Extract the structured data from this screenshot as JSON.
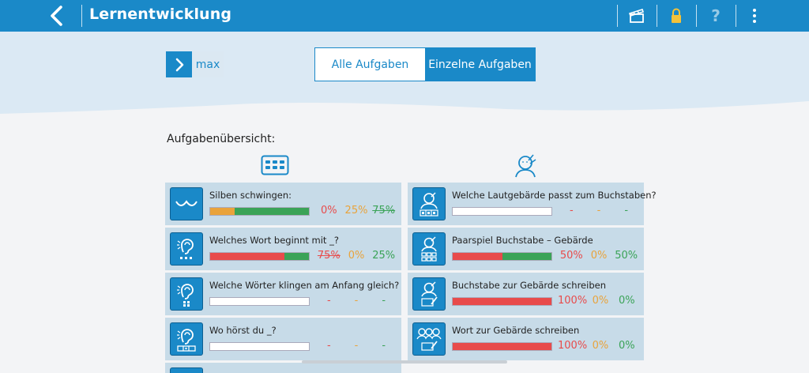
{
  "header": {
    "title": "Lernentwicklung"
  },
  "user": {
    "name": "max"
  },
  "tabs": [
    {
      "label": "Alle Aufgaben",
      "active": false
    },
    {
      "label": "Einzelne Aufgaben",
      "active": true
    }
  ],
  "overview_label": "Aufgabenübersicht:",
  "colors": {
    "primary": "#1a89c8",
    "card_bg": "#c7dbe8",
    "red": "#e84b4b",
    "orange": "#e9a33b",
    "green": "#3aa357"
  },
  "left_tasks": [
    {
      "name": "Silben schwingen:",
      "icon": "wave-icon",
      "progress": {
        "red": 0,
        "orange": 25,
        "green": 75
      },
      "pcts": [
        "0%",
        "25%",
        "75%"
      ]
    },
    {
      "name": "Welches Wort beginnt mit _?",
      "icon": "ear-dots-icon",
      "progress": {
        "red": 75,
        "orange": 0,
        "green": 25
      },
      "pcts": [
        "75%",
        "0%",
        "25%"
      ]
    },
    {
      "name": "Welche Wörter klingen am Anfang gleich?",
      "icon": "ear-grid-icon",
      "progress": {
        "red": 0,
        "orange": 0,
        "green": 0
      },
      "pcts": [
        "-",
        "-",
        "-"
      ]
    },
    {
      "name": "Wo hörst du _?",
      "icon": "ear-slots-icon",
      "progress": {
        "red": 0,
        "orange": 0,
        "green": 0
      },
      "pcts": [
        "-",
        "-",
        "-"
      ]
    }
  ],
  "right_tasks": [
    {
      "name": "Welche Lautgebärde passt zum Buchstaben?",
      "icon": "face-letters-icon",
      "progress": {
        "red": 0,
        "orange": 0,
        "green": 0
      },
      "pcts": [
        "-",
        "-",
        "-"
      ]
    },
    {
      "name": "Paarspiel Buchstabe – Gebärde",
      "icon": "face-grid-icon",
      "progress": {
        "red": 50,
        "orange": 0,
        "green": 50
      },
      "pcts": [
        "50%",
        "0%",
        "50%"
      ]
    },
    {
      "name": "Buchstabe zur Gebärde schreiben",
      "icon": "face-write-icon",
      "progress": {
        "red": 100,
        "orange": 0,
        "green": 0
      },
      "pcts": [
        "100%",
        "0%",
        "0%"
      ]
    },
    {
      "name": "Wort zur Gebärde schreiben",
      "icon": "faces-write-icon",
      "progress": {
        "red": 100,
        "orange": 0,
        "green": 0
      },
      "pcts": [
        "100%",
        "0%",
        "0%"
      ]
    }
  ]
}
